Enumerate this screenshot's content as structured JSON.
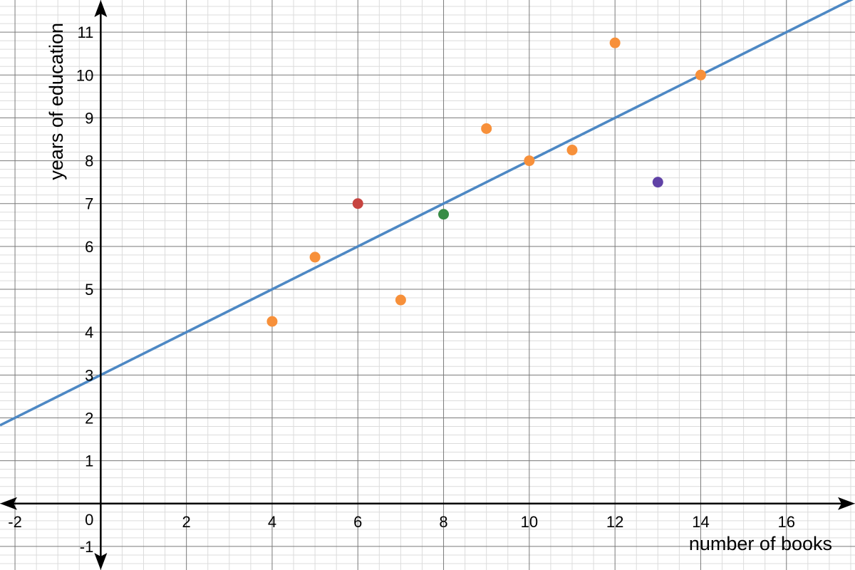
{
  "chart_data": {
    "type": "scatter",
    "xlabel": "number of books",
    "ylabel": "years of education",
    "xlim": [
      -2.35,
      17.6
    ],
    "ylim": [
      -1.55,
      11.75
    ],
    "grid": true,
    "x_ticks": [
      {
        "value": -2,
        "label": "-2"
      },
      {
        "value": 2,
        "label": "2"
      },
      {
        "value": 4,
        "label": "4"
      },
      {
        "value": 6,
        "label": "6"
      },
      {
        "value": 8,
        "label": "8"
      },
      {
        "value": 10,
        "label": "10"
      },
      {
        "value": 12,
        "label": "12"
      },
      {
        "value": 14,
        "label": "14"
      },
      {
        "value": 16,
        "label": "16"
      }
    ],
    "y_ticks": [
      {
        "value": -1,
        "label": "-1"
      },
      {
        "value": 1,
        "label": "1"
      },
      {
        "value": 2,
        "label": "2"
      },
      {
        "value": 3,
        "label": "3"
      },
      {
        "value": 4,
        "label": "4"
      },
      {
        "value": 5,
        "label": "5"
      },
      {
        "value": 6,
        "label": "6"
      },
      {
        "value": 7,
        "label": "7"
      },
      {
        "value": 8,
        "label": "8"
      },
      {
        "value": 9,
        "label": "9"
      },
      {
        "value": 10,
        "label": "10"
      },
      {
        "value": 11,
        "label": "11"
      }
    ],
    "origin_label": "0",
    "points": [
      {
        "x": 4,
        "y": 4.25,
        "color": "#f7903a"
      },
      {
        "x": 5,
        "y": 5.75,
        "color": "#f7903a"
      },
      {
        "x": 6,
        "y": 7.0,
        "color": "#c74440"
      },
      {
        "x": 7,
        "y": 4.75,
        "color": "#f7903a"
      },
      {
        "x": 8,
        "y": 6.75,
        "color": "#388c46"
      },
      {
        "x": 9,
        "y": 8.75,
        "color": "#f7903a"
      },
      {
        "x": 10,
        "y": 8.0,
        "color": "#f7903a"
      },
      {
        "x": 11,
        "y": 8.25,
        "color": "#f7903a"
      },
      {
        "x": 12,
        "y": 10.75,
        "color": "#f7903a"
      },
      {
        "x": 13,
        "y": 7.5,
        "color": "#6042a6"
      },
      {
        "x": 14,
        "y": 10.0,
        "color": "#f7903a"
      }
    ],
    "trend_line": {
      "slope": 0.5,
      "intercept": 3,
      "color": "#4d88c4"
    }
  }
}
